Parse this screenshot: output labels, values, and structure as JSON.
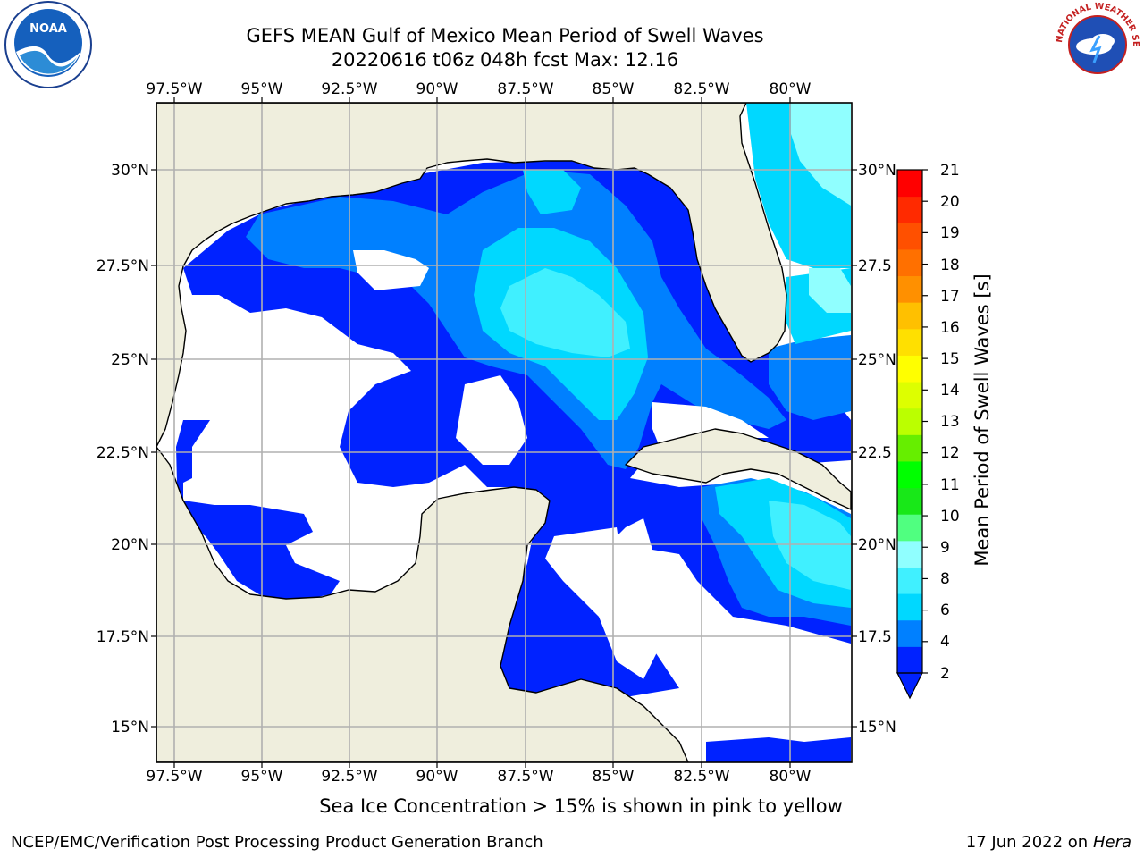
{
  "header": {
    "title_line1": "GEFS MEAN Gulf of Mexico Mean Period of Swell Waves",
    "title_line2": "20220616 t06z 048h fcst   Max: 12.16"
  },
  "logos": {
    "left": "NOAA",
    "right": "NATIONAL WEATHER SERVICE"
  },
  "map": {
    "lon_labels": [
      "97.5°W",
      "95°W",
      "92.5°W",
      "90°W",
      "87.5°W",
      "85°W",
      "82.5°W",
      "80°W"
    ],
    "lat_labels_left": [
      "30°N",
      "27.5°N",
      "25°N",
      "22.5°N",
      "20°N",
      "17.5°N",
      "15°N"
    ],
    "lat_labels_right": [
      "30°N",
      "27.5",
      "25°N",
      "22.5",
      "20°N",
      "17.5",
      "15°N"
    ],
    "colors": {
      "land": "#efeedd",
      "ocean_background": "#ffffff",
      "grid": "#b0b0b0"
    }
  },
  "colorbar": {
    "label": "Mean Period of Swell Waves [s]",
    "ticks": [
      "21",
      "20",
      "19",
      "18",
      "17",
      "16",
      "15",
      "14",
      "13",
      "12",
      "11",
      "10",
      "9",
      "8",
      "6",
      "4",
      "2"
    ],
    "colors_bottom_to_top": [
      "#0022ff",
      "#0080ff",
      "#00d8ff",
      "#40f0ff",
      "#90ffff",
      "#50ff80",
      "#18e818",
      "#00ff00",
      "#66ee00",
      "#bbff00",
      "#ddff00",
      "#ffff00",
      "#ffe000",
      "#ffc000",
      "#ff9000",
      "#ff7000",
      "#ff5000",
      "#ff2a00",
      "#ff0000"
    ]
  },
  "footer": {
    "ice_note": "Sea Ice Concentration > 15% is shown in pink to yellow",
    "credit": "NCEP/EMC/Verification Post Processing Product Generation Branch",
    "run_date": "17 Jun 2022 on",
    "machine": "Hera"
  }
}
